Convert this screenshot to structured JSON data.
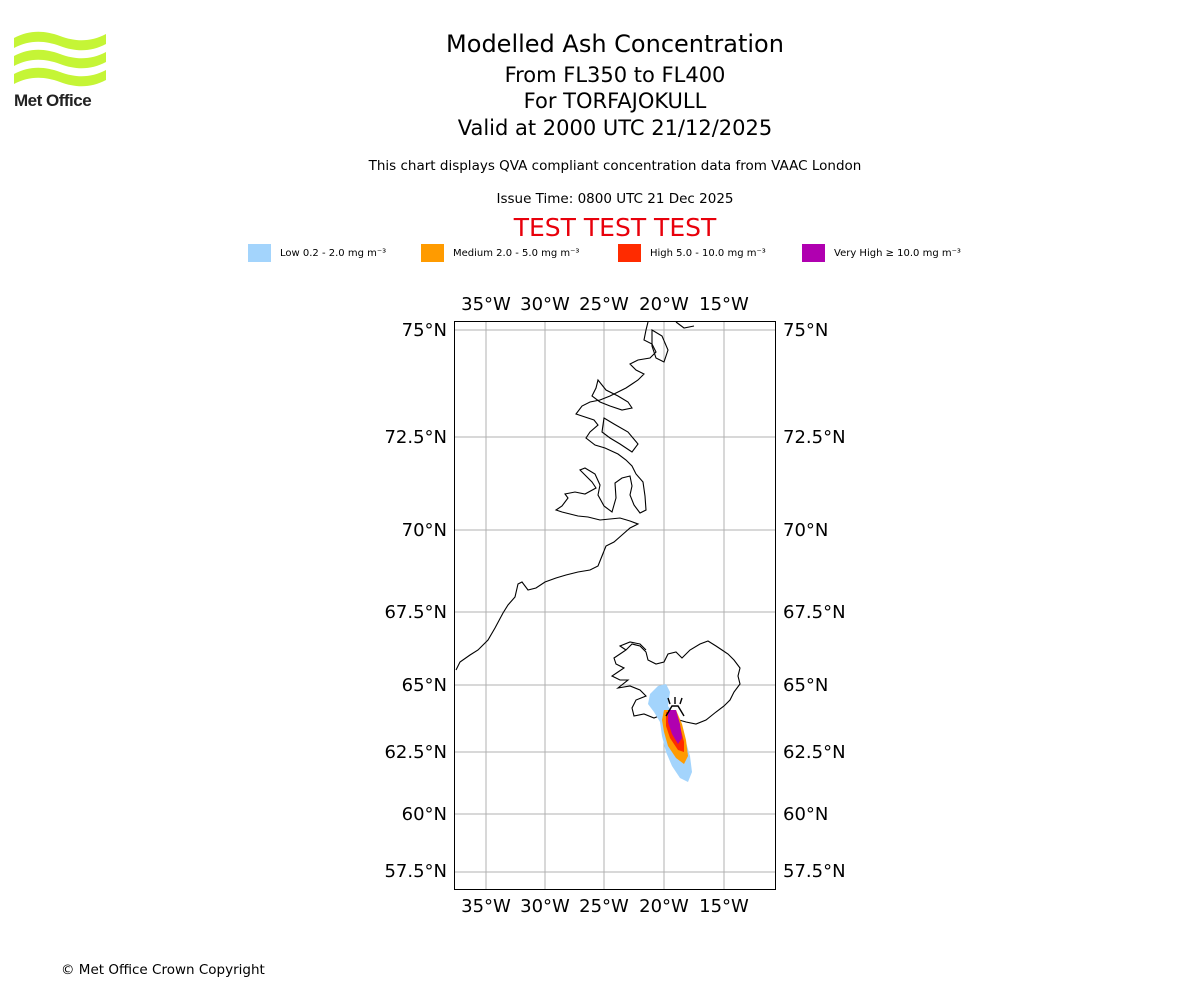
{
  "brand": {
    "logo_text": "Met Office"
  },
  "header": {
    "title": "Modelled Ash Concentration",
    "levels": "From FL350 to FL400",
    "volcano": "For TORFAJOKULL",
    "valid": "Valid at 2000 UTC 21/12/2025",
    "compliance": "This chart displays QVA compliant concentration data from VAAC London",
    "issue_time": "Issue Time: 0800 UTC 21 Dec 2025",
    "test_banner": "TEST TEST TEST"
  },
  "legend": [
    {
      "label": "Low 0.2 - 2.0 mg m⁻³",
      "color": "#a3d4fc"
    },
    {
      "label": "Medium 2.0 - 5.0 mg m⁻³",
      "color": "#ff9b00"
    },
    {
      "label": "High 5.0 - 10.0 mg m⁻³",
      "color": "#ff2b00"
    },
    {
      "label": "Very High ≥ 10.0 mg m⁻³",
      "color": "#b000b0"
    }
  ],
  "map": {
    "lon_ticks": [
      "35°W",
      "30°W",
      "25°W",
      "20°W",
      "15°W"
    ],
    "lat_ticks": [
      "75°N",
      "72.5°N",
      "70°N",
      "67.5°N",
      "65°N",
      "62.5°N",
      "60°N",
      "57.5°N"
    ]
  },
  "footer": {
    "copyright": "© Met Office Crown Copyright"
  }
}
